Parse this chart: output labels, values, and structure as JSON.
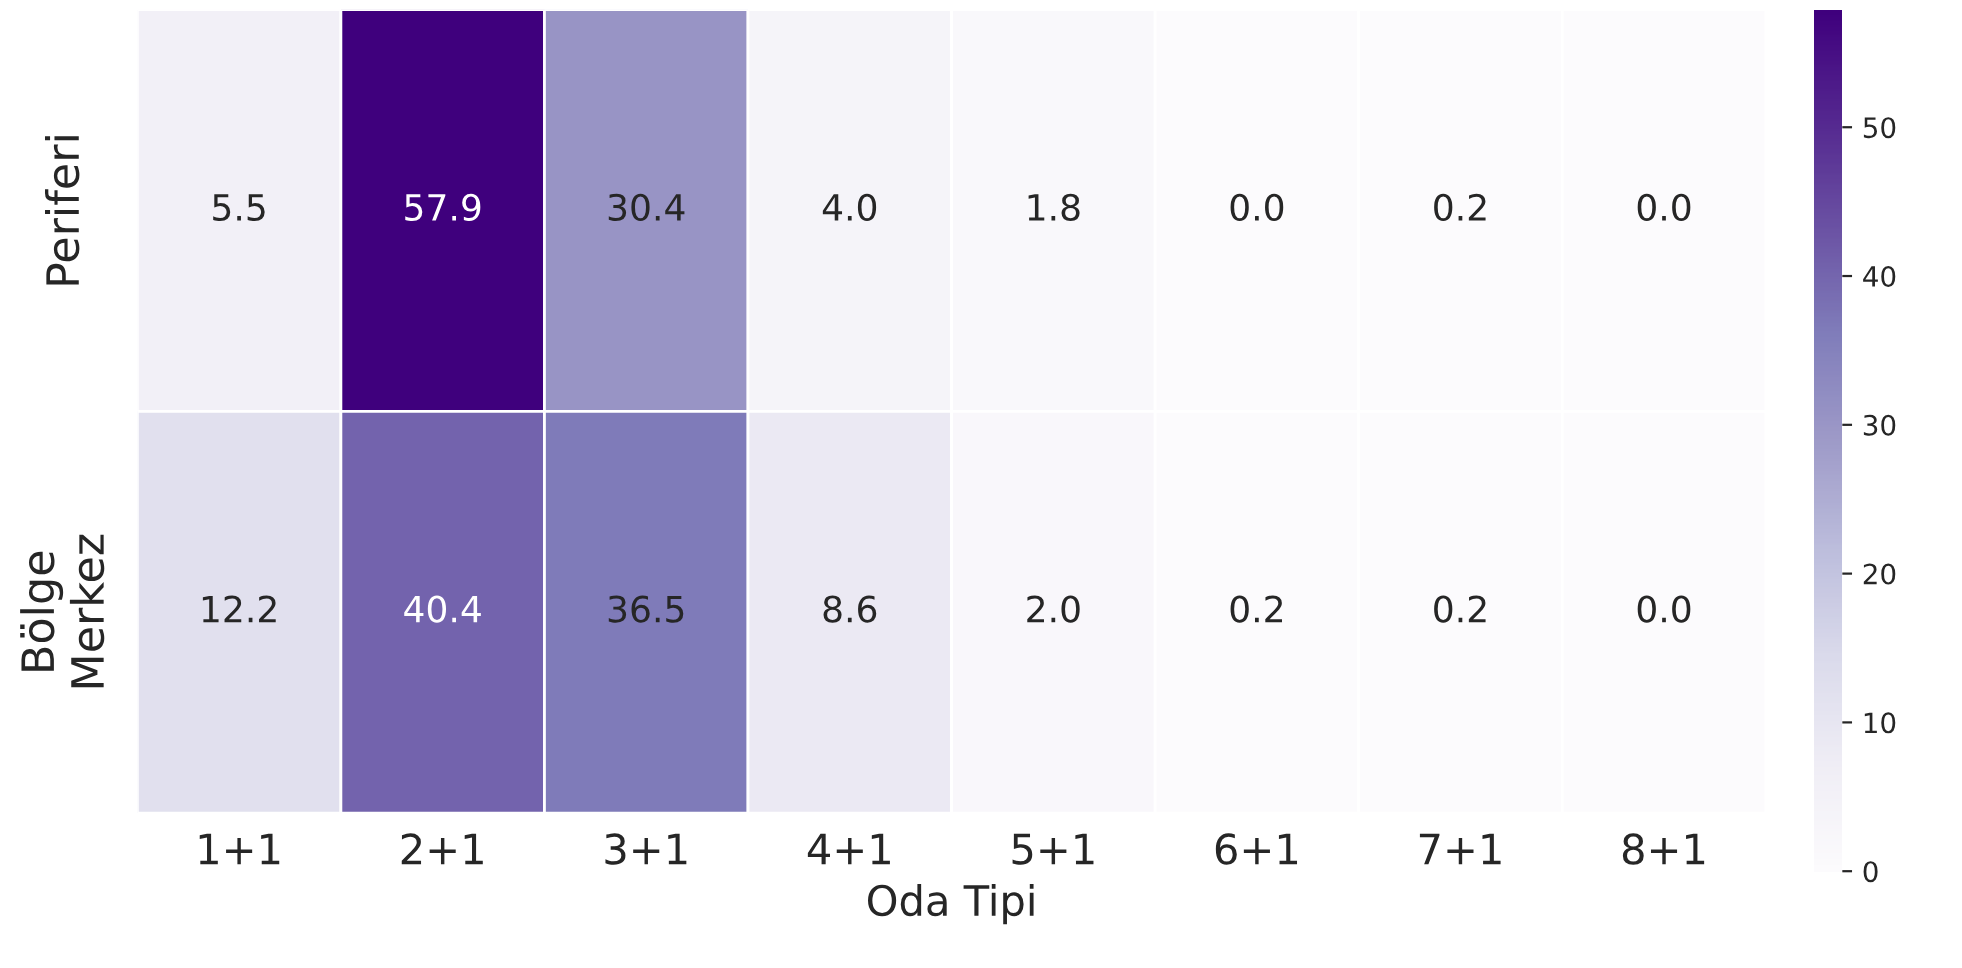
{
  "chart_data": {
    "type": "heatmap",
    "xlabel": "Oda Tipi",
    "categories": [
      "1+1",
      "2+1",
      "3+1",
      "4+1",
      "5+1",
      "6+1",
      "7+1",
      "8+1"
    ],
    "y_categories": [
      "Periferi",
      "Bölge\nMerkez"
    ],
    "cells": [
      [
        5.5,
        57.9,
        30.4,
        4.0,
        1.8,
        0.0,
        0.2,
        0.0
      ],
      [
        12.2,
        40.4,
        36.5,
        8.6,
        2.0,
        0.2,
        0.2,
        0.0
      ]
    ],
    "cell_labels": [
      [
        "5.5",
        "57.9",
        "30.4",
        "4.0",
        "1.8",
        "0.0",
        "0.2",
        "0.0"
      ],
      [
        "12.2",
        "40.4",
        "36.5",
        "8.6",
        "2.0",
        "0.2",
        "0.2",
        "0.0"
      ]
    ],
    "clim": [
      0,
      57.9
    ],
    "cticks": [
      0,
      10,
      20,
      30,
      40,
      50
    ]
  }
}
